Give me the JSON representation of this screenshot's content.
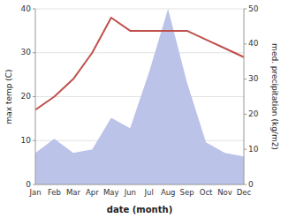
{
  "chart_data": {
    "type": "line",
    "categories": [
      "Jan",
      "Feb",
      "Mar",
      "Apr",
      "May",
      "Jun",
      "Jul",
      "Aug",
      "Sep",
      "Oct",
      "Nov",
      "Dec"
    ],
    "xlabel": "date (month)",
    "ylabel": "max temp (C)",
    "y2label": "med. precipitation (kg/m2)",
    "series": [
      {
        "type": "area",
        "axis": "y2",
        "color": "#bcc3e8",
        "values": [
          9,
          13,
          9,
          10,
          19,
          16,
          32,
          50,
          29,
          12,
          9,
          8
        ]
      },
      {
        "type": "line",
        "color": "#c0504d",
        "values": [
          17,
          20,
          24,
          30,
          38,
          35,
          35,
          35,
          35,
          33,
          31,
          29
        ]
      }
    ],
    "ylim": [
      0,
      40
    ],
    "yticks": [
      0,
      10,
      20,
      30,
      40
    ],
    "y2lim": [
      0,
      50
    ],
    "y2ticks": [
      0,
      10,
      20,
      30,
      40,
      50
    ],
    "grid": true
  }
}
